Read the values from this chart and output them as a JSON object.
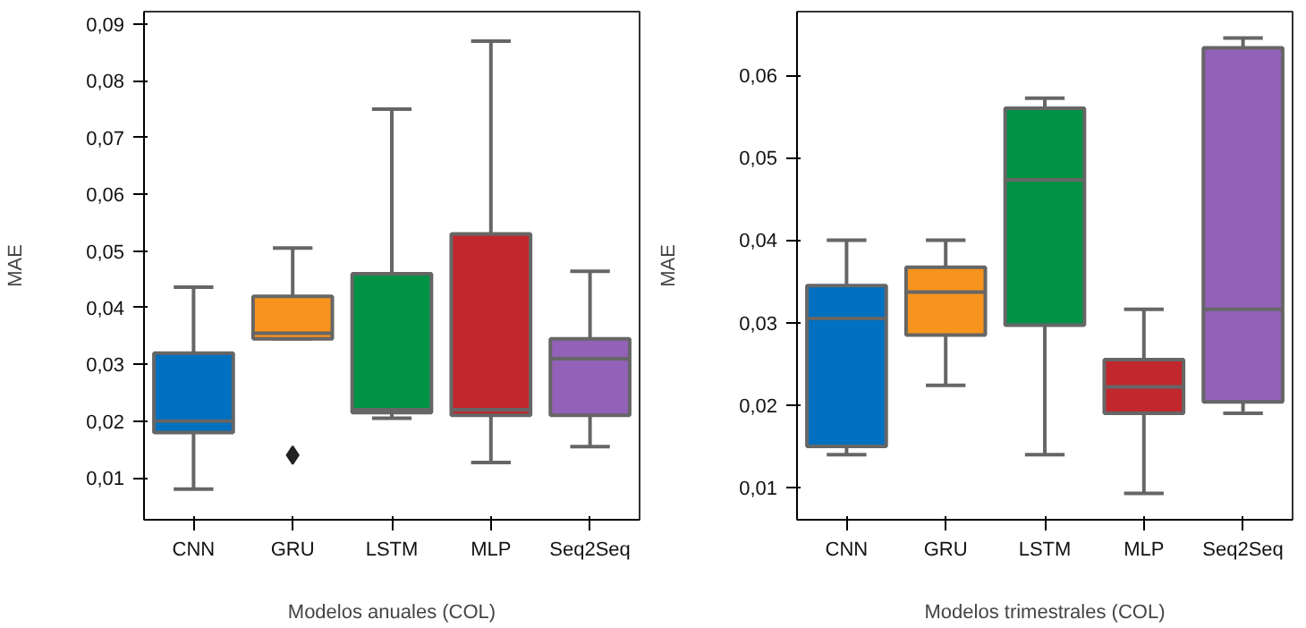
{
  "chart_data": [
    {
      "type": "box",
      "xlabel": "Modelos anuales (COL)",
      "ylabel": "MAE",
      "categories": [
        "CNN",
        "GRU",
        "LSTM",
        "MLP",
        "Seq2Seq"
      ],
      "colors": [
        "#0070c0",
        "#f7941d",
        "#009245",
        "#c1272d",
        "#9261b8"
      ],
      "boxes": [
        {
          "low": 0.008,
          "q1": 0.018,
          "median": 0.02,
          "q3": 0.032,
          "high": 0.0436
        },
        {
          "low": 0.0345,
          "q1": 0.0345,
          "median": 0.0355,
          "q3": 0.042,
          "high": 0.0505,
          "outliers": [
            0.014
          ]
        },
        {
          "low": 0.0205,
          "q1": 0.0215,
          "median": 0.022,
          "q3": 0.046,
          "high": 0.075
        },
        {
          "low": 0.0127,
          "q1": 0.021,
          "median": 0.022,
          "q3": 0.053,
          "high": 0.087
        },
        {
          "low": 0.0155,
          "q1": 0.021,
          "median": 0.031,
          "q3": 0.0345,
          "high": 0.0464
        }
      ],
      "ylim": [
        0.0026,
        0.0922
      ],
      "yticks": [
        {
          "value": 0.01,
          "label": "0,01"
        },
        {
          "value": 0.02,
          "label": "0,02"
        },
        {
          "value": 0.03,
          "label": "0,03"
        },
        {
          "value": 0.04,
          "label": "0,04"
        },
        {
          "value": 0.05,
          "label": "0,05"
        },
        {
          "value": 0.06,
          "label": "0,06"
        },
        {
          "value": 0.07,
          "label": "0,07"
        },
        {
          "value": 0.08,
          "label": "0,08"
        },
        {
          "value": 0.09,
          "label": "0,09"
        }
      ],
      "grid": false
    },
    {
      "type": "box",
      "xlabel": "Modelos trimestrales (COL)",
      "ylabel": "MAE",
      "categories": [
        "CNN",
        "GRU",
        "LSTM",
        "MLP",
        "Seq2Seq"
      ],
      "colors": [
        "#0070c0",
        "#f7941d",
        "#009245",
        "#c1272d",
        "#9261b8"
      ],
      "boxes": [
        {
          "low": 0.014,
          "q1": 0.015,
          "median": 0.0305,
          "q3": 0.0345,
          "high": 0.04
        },
        {
          "low": 0.0224,
          "q1": 0.0285,
          "median": 0.0337,
          "q3": 0.0367,
          "high": 0.04
        },
        {
          "low": 0.014,
          "q1": 0.0297,
          "median": 0.0473,
          "q3": 0.056,
          "high": 0.0572
        },
        {
          "low": 0.0093,
          "q1": 0.019,
          "median": 0.0222,
          "q3": 0.0255,
          "high": 0.0316
        },
        {
          "low": 0.019,
          "q1": 0.0204,
          "median": 0.0316,
          "q3": 0.0633,
          "high": 0.0645
        }
      ],
      "ylim": [
        0.0061,
        0.0677
      ],
      "yticks": [
        {
          "value": 0.01,
          "label": "0,01"
        },
        {
          "value": 0.02,
          "label": "0,02"
        },
        {
          "value": 0.03,
          "label": "0,03"
        },
        {
          "value": 0.04,
          "label": "0,04"
        },
        {
          "value": 0.05,
          "label": "0,05"
        },
        {
          "value": 0.06,
          "label": "0,06"
        }
      ],
      "grid": false
    }
  ]
}
